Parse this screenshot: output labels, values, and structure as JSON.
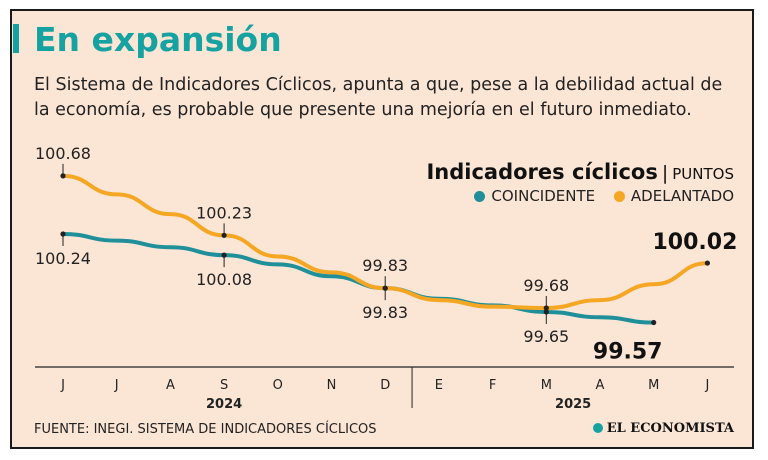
{
  "header": {
    "title": "En expansión",
    "subtitle": "El Sistema de Indicadores Cíclicos, apunta a que, pese a la debilidad actual de la economía, es probable que presente una mejoría en el futuro inmediato."
  },
  "legend": {
    "title": "Indicadores cíclicos",
    "separator": "|",
    "units": "PUNTOS",
    "items": [
      "COINCIDENTE",
      "ADELANTADO"
    ]
  },
  "footer": {
    "source": "FUENTE: INEGI. SISTEMA DE INDICADORES CÍCLICOS",
    "brand": "EL ECONOMISTA"
  },
  "colors": {
    "coincidente": "#1f8f9a",
    "adelantado": "#f5a623",
    "accent": "#16a2a0",
    "background": "#fbe6d6"
  },
  "chart_data": {
    "type": "line",
    "categories": [
      "J",
      "J",
      "A",
      "S",
      "O",
      "N",
      "D",
      "E",
      "F",
      "M",
      "A",
      "M",
      "J"
    ],
    "years": [
      {
        "label": "2024",
        "months": [
          "J",
          "J",
          "A",
          "S",
          "O",
          "N",
          "D"
        ]
      },
      {
        "label": "2025",
        "months": [
          "E",
          "F",
          "M",
          "A",
          "M",
          "J"
        ]
      }
    ],
    "ylim": [
      99.4,
      100.8
    ],
    "grid": false,
    "legend_position": "top-right",
    "series": [
      {
        "name": "COINCIDENTE",
        "values": [
          100.24,
          100.19,
          100.14,
          100.08,
          100.01,
          99.92,
          99.83,
          99.75,
          99.7,
          99.65,
          99.61,
          99.57,
          null
        ],
        "labels": [
          {
            "index": 0,
            "text": "100.24"
          },
          {
            "index": 3,
            "text": "100.08"
          },
          {
            "index": 6,
            "text": "99.83"
          },
          {
            "index": 9,
            "text": "99.65"
          },
          {
            "index": 11,
            "text": "99.57"
          }
        ]
      },
      {
        "name": "ADELANTADO",
        "values": [
          100.68,
          100.54,
          100.39,
          100.23,
          100.07,
          99.95,
          99.83,
          99.74,
          99.69,
          99.68,
          99.74,
          99.86,
          100.02
        ],
        "labels": [
          {
            "index": 0,
            "text": "100.68"
          },
          {
            "index": 3,
            "text": "100.23"
          },
          {
            "index": 6,
            "text": "99.83"
          },
          {
            "index": 9,
            "text": "99.68"
          },
          {
            "index": 12,
            "text": "100.02"
          }
        ]
      }
    ]
  }
}
